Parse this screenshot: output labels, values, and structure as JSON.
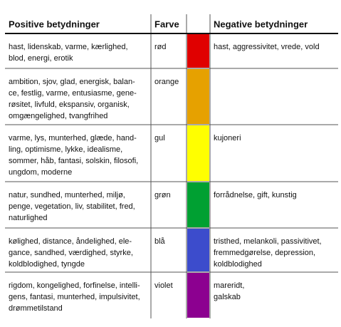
{
  "table": {
    "header": {
      "positive": "Positive betydninger",
      "color_name": "Farve",
      "negative": "Negative betydninger"
    },
    "rows": [
      {
        "positive": [
          "hast, lidenskab, varme, kærlighed,",
          "blod, energi, erotik"
        ],
        "color_name": "rød",
        "swatch": "#e00000",
        "negative": [
          "hast, aggressivitet, vrede, vold"
        ]
      },
      {
        "positive": [
          "ambition, sjov, glad, energisk, balan-",
          "ce, festlig, varme, entusiasme, gene-",
          "røsitet, livfuld, ekspansiv, organisk,",
          "omgængelighed, tvangfrihed"
        ],
        "color_name": "orange",
        "swatch": "#e6a100",
        "negative": []
      },
      {
        "positive": [
          "varme, lys, munterhed, glæde, hand-",
          "ling, optimisme, lykke, idealisme,",
          "sommer, håb, fantasi, solskin, filosofi,",
          "ungdom, moderne"
        ],
        "color_name": "gul",
        "swatch": "#ffff00",
        "negative": [
          "kujoneri"
        ]
      },
      {
        "positive": [
          "natur, sundhed, munterhed, miljø,",
          "penge, vegetation, liv, stabilitet, fred,",
          "naturlighed"
        ],
        "color_name": "grøn",
        "swatch": "#00a032",
        "negative": [
          "forrådnelse, gift, kunstig"
        ]
      },
      {
        "positive": [
          "kølighed, distance, åndelighed, ele-",
          "gance, sandhed, værdighed, styrke,",
          "koldblodighed, tyngde"
        ],
        "color_name": "blå",
        "swatch": "#3c4ccc",
        "negative": [
          "tristhed, melankoli, passivitivet,",
          "fremmedgørelse, depression,",
          "koldblodighed"
        ]
      },
      {
        "positive": [
          "rigdom, kongelighed, forfinelse, intelli-",
          "gens, fantasi, munterhed, impulsivitet,",
          "drømmetilstand"
        ],
        "color_name": "violet",
        "swatch": "#8c0090",
        "negative": [
          "mareridt,",
          "galskab"
        ]
      }
    ]
  }
}
